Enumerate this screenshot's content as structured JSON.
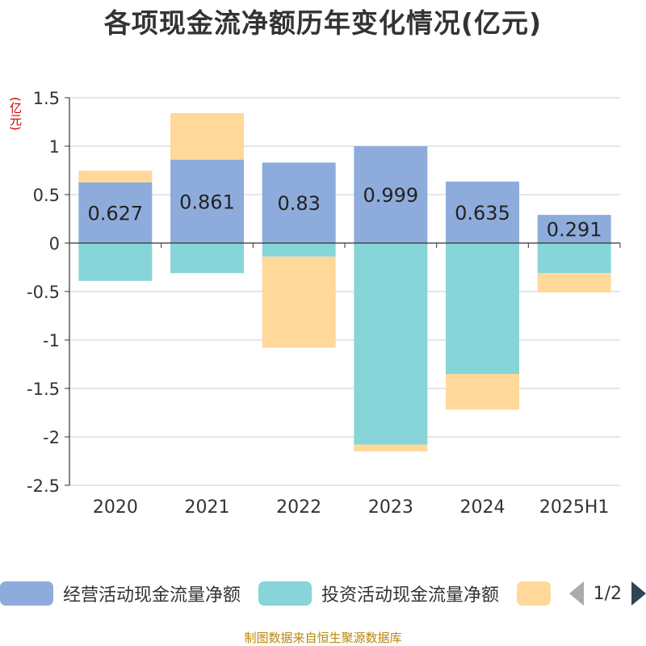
{
  "title": "各项现金流净额历年变化情况(亿元)",
  "unit": "(亿元)",
  "source": "制图数据来自恒生聚源数据库",
  "legend_page": "1/2",
  "colors": {
    "operating": "#8eacdb",
    "investing": "#87d5d8",
    "financing": "#ffd89a"
  },
  "chart_data": {
    "type": "bar",
    "stacked": true,
    "categories": [
      "2020",
      "2021",
      "2022",
      "2023",
      "2024",
      "2025H1"
    ],
    "ylim": [
      -2.5,
      1.5
    ],
    "yticks": [
      1.5,
      1,
      0.5,
      0,
      -0.5,
      -1,
      -1.5,
      -2,
      -2.5
    ],
    "ytick_labels": [
      "1.5",
      "1",
      "0.5",
      "0",
      "-0.5",
      "-1",
      "-1.5",
      "-2",
      "-2.5"
    ],
    "grid": true,
    "legend_position": "bottom",
    "series": [
      {
        "name": "经营活动现金流量净额",
        "values": [
          0.627,
          0.861,
          0.83,
          0.999,
          0.635,
          0.291
        ],
        "labels": [
          "0.627",
          "0.861",
          "0.83",
          "0.999",
          "0.635",
          "0.291"
        ]
      },
      {
        "name": "投资活动现金流量净额",
        "values": [
          -0.39,
          -0.31,
          -0.14,
          -2.08,
          -1.35,
          -0.31
        ]
      },
      {
        "values": [
          0.12,
          0.48,
          -0.94,
          -0.07,
          -0.37,
          -0.2
        ]
      }
    ]
  }
}
